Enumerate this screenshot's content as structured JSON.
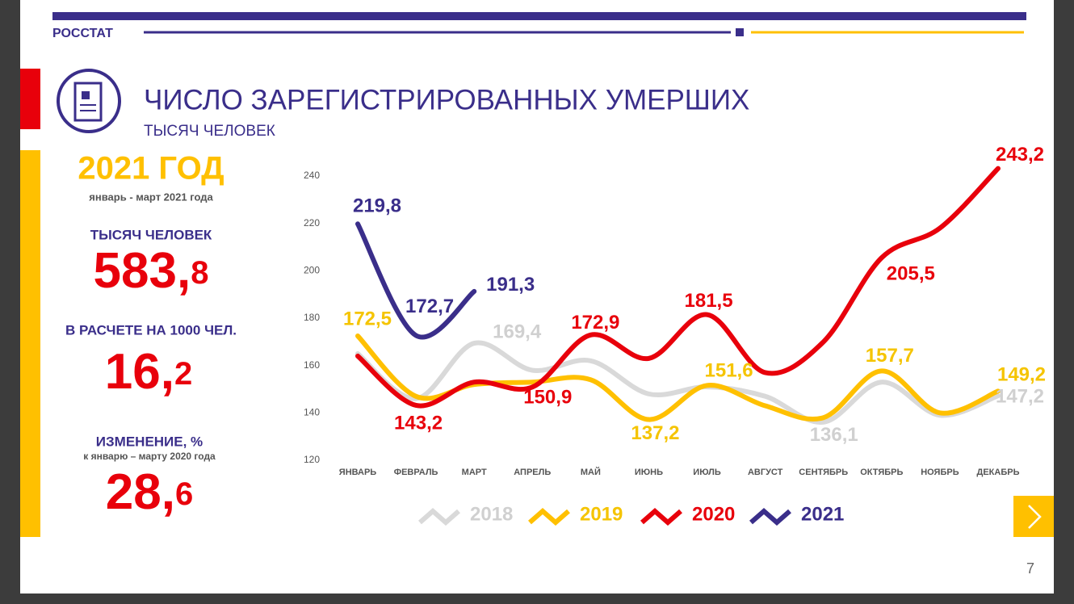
{
  "header": {
    "brand": "РОССТАТ",
    "title": "ЧИСЛО ЗАРЕГИСТРИРОВАННЫХ УМЕРШИХ",
    "subtitle": "ТЫСЯЧ ЧЕЛОВЕК"
  },
  "summary": {
    "year": "2021 ГОД",
    "period": "январь - март 2021 года",
    "total_label": "ТЫСЯЧ ЧЕЛОВЕК",
    "total_main": "583,",
    "total_fraction": "8",
    "rate_label": "В РАСЧЕТЕ НА 1000 ЧЕЛ.",
    "rate_main": "16,",
    "rate_fraction": "2",
    "change_label": "ИЗМЕНЕНИЕ, %",
    "change_note": "к январю – марту 2020 года",
    "change_main": "28,",
    "change_fraction": "6"
  },
  "page_number": "7",
  "chart_data": {
    "type": "line",
    "categories": [
      "ЯНВАРЬ",
      "ФЕВРАЛЬ",
      "МАРТ",
      "АПРЕЛЬ",
      "МАЙ",
      "ИЮНЬ",
      "ИЮЛЬ",
      "АВГУСТ",
      "СЕНТЯБРЬ",
      "ОКТЯБРЬ",
      "НОЯБРЬ",
      "ДЕКАБРЬ"
    ],
    "ylim": [
      120,
      240
    ],
    "yticks": [
      120,
      140,
      160,
      180,
      200,
      220,
      240
    ],
    "series": [
      {
        "name": "2018",
        "color": "#d9d9d9",
        "values": [
          165,
          146,
          169.4,
          158,
          162,
          148,
          151,
          147,
          136.1,
          153,
          139,
          147.2
        ],
        "value_labels": [
          null,
          null,
          "169,4",
          null,
          null,
          null,
          null,
          null,
          "136,1",
          null,
          null,
          "147,2"
        ]
      },
      {
        "name": "2019",
        "color": "#ffc000",
        "values": [
          172.5,
          147,
          152,
          153,
          154,
          137.2,
          151.6,
          143,
          138,
          157.7,
          140,
          149.2
        ],
        "value_labels": [
          "172,5",
          null,
          null,
          null,
          null,
          "137,2",
          "151,6",
          null,
          null,
          "157,7",
          null,
          "149,2"
        ]
      },
      {
        "name": "2020",
        "color": "#e8000b",
        "values": [
          164,
          143.2,
          153,
          150.9,
          172.9,
          163,
          181.5,
          157,
          170,
          205.5,
          218,
          243.2
        ],
        "value_labels": [
          null,
          "143,2",
          null,
          "150,9",
          "172,9",
          null,
          "181,5",
          null,
          null,
          "205,5",
          null,
          "243,2"
        ]
      },
      {
        "name": "2021",
        "color": "#3a2e8a",
        "values": [
          219.8,
          172.7,
          191.3,
          null,
          null,
          null,
          null,
          null,
          null,
          null,
          null,
          null
        ],
        "value_labels": [
          "219,8",
          "172,7",
          "191,3",
          null,
          null,
          null,
          null,
          null,
          null,
          null,
          null,
          null
        ]
      }
    ]
  }
}
